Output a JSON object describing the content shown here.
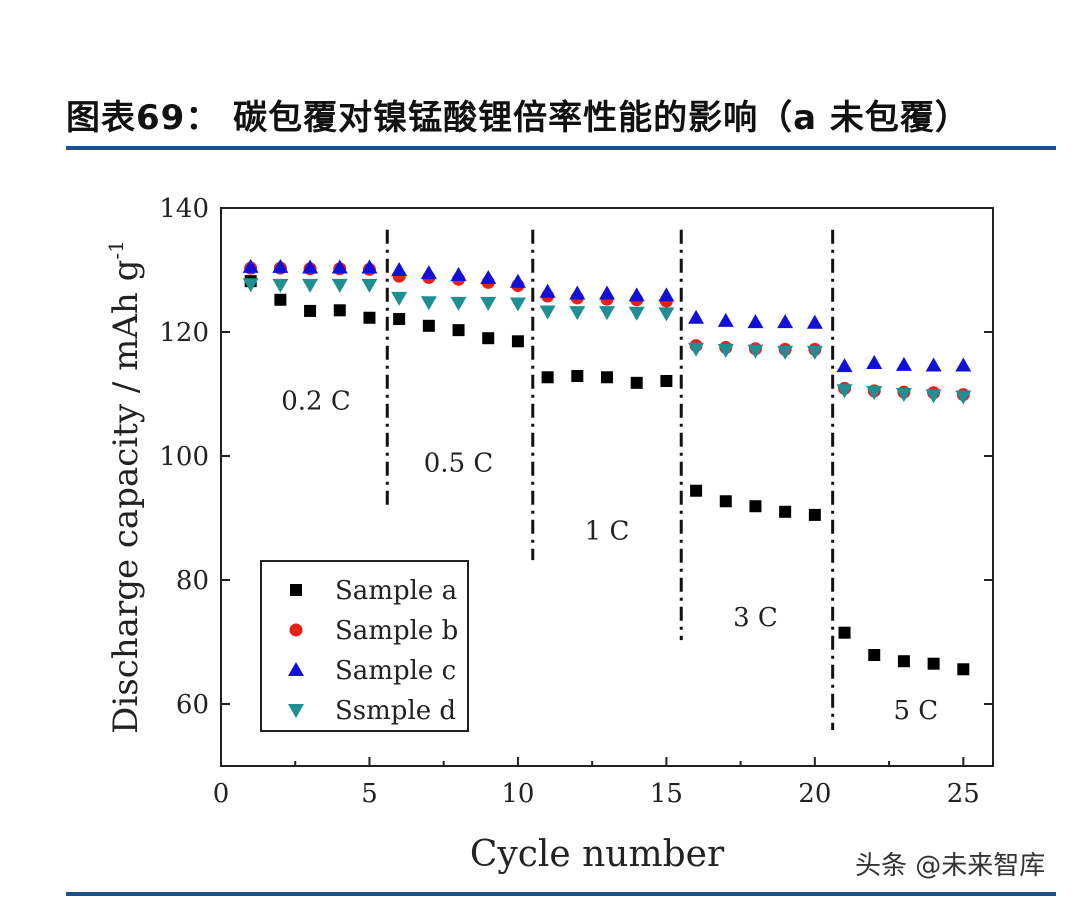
{
  "header": {
    "title": "图表69：  碳包覆对镍锰酸锂倍率性能的影响（a 未包覆）"
  },
  "watermark": "头条 @未来智库",
  "chart_data": {
    "type": "scatter",
    "xlabel": "Cycle number",
    "ylabel": "Discharge capacity / mAh g",
    "ylabel_sup": "-1",
    "xlim": [
      0,
      26
    ],
    "ylim": [
      50,
      140
    ],
    "xticks": [
      0,
      5,
      10,
      15,
      20,
      25
    ],
    "yticks": [
      60,
      80,
      100,
      120,
      140
    ],
    "grid": false,
    "legend": "bottom-left",
    "x": [
      1,
      2,
      3,
      4,
      5,
      6,
      7,
      8,
      9,
      10,
      11,
      12,
      13,
      14,
      15,
      16,
      17,
      18,
      19,
      20,
      21,
      22,
      23,
      24,
      25
    ],
    "series": [
      {
        "name": "Sample a",
        "marker": "square",
        "color": "#000000",
        "values": [
          128.2,
          125.2,
          123.4,
          123.5,
          122.3,
          122.1,
          121.0,
          120.3,
          119.0,
          118.5,
          112.7,
          112.9,
          112.7,
          111.8,
          112.1,
          94.4,
          92.7,
          91.9,
          91.0,
          90.5,
          71.5,
          67.9,
          66.9,
          66.5,
          65.6
        ]
      },
      {
        "name": "Sample b",
        "marker": "circle",
        "color": "#e8201c",
        "values": [
          130.3,
          130.3,
          130.2,
          130.2,
          130.1,
          129.0,
          128.8,
          128.5,
          128.0,
          127.5,
          125.8,
          125.5,
          125.3,
          125.2,
          125.0,
          117.8,
          117.5,
          117.3,
          117.2,
          117.2,
          110.9,
          110.5,
          110.3,
          110.2,
          109.9
        ]
      },
      {
        "name": "Sample c",
        "marker": "triangle-up",
        "color": "#1010d8",
        "values": [
          130.5,
          130.5,
          130.4,
          130.4,
          130.4,
          130.0,
          129.5,
          129.2,
          128.7,
          128.1,
          126.5,
          126.2,
          126.2,
          125.9,
          125.9,
          122.3,
          121.8,
          121.6,
          121.6,
          121.5,
          114.5,
          115.0,
          114.7,
          114.6,
          114.6
        ]
      },
      {
        "name": "Ssmple d",
        "marker": "triangle-down",
        "color": "#1f8f94",
        "values": [
          127.7,
          127.6,
          127.6,
          127.6,
          127.6,
          125.5,
          124.8,
          124.7,
          124.7,
          124.6,
          123.3,
          123.2,
          123.2,
          123.1,
          123.0,
          117.3,
          117.1,
          117.0,
          116.8,
          116.8,
          110.6,
          110.3,
          110.0,
          109.8,
          109.6
        ]
      }
    ],
    "dividers": [
      {
        "x": 5.6,
        "y": [
          91.6,
          136.5
        ]
      },
      {
        "x": 10.5,
        "y": [
          83.2,
          136.5
        ]
      },
      {
        "x": 15.5,
        "y": [
          70.3,
          136.5
        ]
      },
      {
        "x": 20.6,
        "y": [
          55.8,
          136.5
        ]
      }
    ],
    "annotations": [
      {
        "text": "0.2 C",
        "x": 3.2,
        "y": 107.5
      },
      {
        "text": "0.5 C",
        "x": 8.0,
        "y": 97.5
      },
      {
        "text": "1 C",
        "x": 13.0,
        "y": 86.5
      },
      {
        "text": "3 C",
        "x": 18.0,
        "y": 72.6
      },
      {
        "text": "5 C",
        "x": 23.4,
        "y": 57.6
      }
    ]
  }
}
